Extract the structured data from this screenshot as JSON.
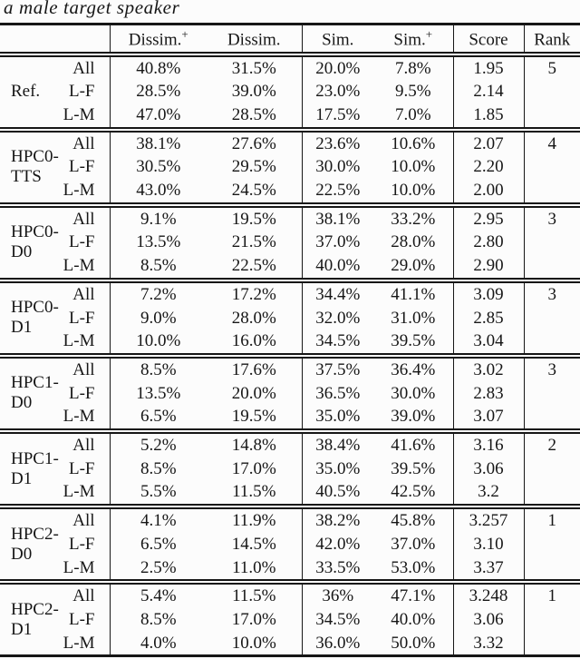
{
  "caption": "a male target speaker",
  "table": {
    "columns": [
      {
        "label": "Dissim.",
        "sup": "+"
      },
      {
        "label": "Dissim.",
        "sup": ""
      },
      {
        "label": "Sim.",
        "sup": ""
      },
      {
        "label": "Sim.",
        "sup": "+"
      },
      {
        "label": "Score",
        "sup": ""
      },
      {
        "label": "Rank",
        "sup": ""
      }
    ],
    "groups": [
      {
        "label_lines": [
          "Ref."
        ],
        "rank": "5",
        "rows": [
          {
            "cond": "All",
            "values": [
              "40.8%",
              "31.5%",
              "20.0%",
              "7.8%",
              "1.95"
            ]
          },
          {
            "cond": "L-F",
            "values": [
              "28.5%",
              "39.0%",
              "23.0%",
              "9.5%",
              "2.14"
            ]
          },
          {
            "cond": "L-M",
            "values": [
              "47.0%",
              "28.5%",
              "17.5%",
              "7.0%",
              "1.85"
            ]
          }
        ]
      },
      {
        "label_lines": [
          "HPC0-",
          "TTS"
        ],
        "rank": "4",
        "rows": [
          {
            "cond": "All",
            "values": [
              "38.1%",
              "27.6%",
              "23.6%",
              "10.6%",
              "2.07"
            ]
          },
          {
            "cond": "L-F",
            "values": [
              "30.5%",
              "29.5%",
              "30.0%",
              "10.0%",
              "2.20"
            ]
          },
          {
            "cond": "L-M",
            "values": [
              "43.0%",
              "24.5%",
              "22.5%",
              "10.0%",
              "2.00"
            ]
          }
        ]
      },
      {
        "label_lines": [
          "HPC0-",
          "D0"
        ],
        "rank": "3",
        "rows": [
          {
            "cond": "All",
            "values": [
              "9.1%",
              "19.5%",
              "38.1%",
              "33.2%",
              "2.95"
            ]
          },
          {
            "cond": "L-F",
            "values": [
              "13.5%",
              "21.5%",
              "37.0%",
              "28.0%",
              "2.80"
            ]
          },
          {
            "cond": "L-M",
            "values": [
              "8.5%",
              "22.5%",
              "40.0%",
              "29.0%",
              "2.90"
            ]
          }
        ]
      },
      {
        "label_lines": [
          "HPC0-",
          "D1"
        ],
        "rank": "3",
        "rows": [
          {
            "cond": "All",
            "values": [
              "7.2%",
              "17.2%",
              "34.4%",
              "41.1%",
              "3.09"
            ]
          },
          {
            "cond": "L-F",
            "values": [
              "9.0%",
              "28.0%",
              "32.0%",
              "31.0%",
              "2.85"
            ]
          },
          {
            "cond": "L-M",
            "values": [
              "10.0%",
              "16.0%",
              "34.5%",
              "39.5%",
              "3.04"
            ]
          }
        ]
      },
      {
        "label_lines": [
          "HPC1-",
          "D0"
        ],
        "rank": "3",
        "rows": [
          {
            "cond": "All",
            "values": [
              "8.5%",
              "17.6%",
              "37.5%",
              "36.4%",
              "3.02"
            ]
          },
          {
            "cond": "L-F",
            "values": [
              "13.5%",
              "20.0%",
              "36.5%",
              "30.0%",
              "2.83"
            ]
          },
          {
            "cond": "L-M",
            "values": [
              "6.5%",
              "19.5%",
              "35.0%",
              "39.0%",
              "3.07"
            ]
          }
        ]
      },
      {
        "label_lines": [
          "HPC1-",
          "D1"
        ],
        "rank": "2",
        "rows": [
          {
            "cond": "All",
            "values": [
              "5.2%",
              "14.8%",
              "38.4%",
              "41.6%",
              "3.16"
            ]
          },
          {
            "cond": "L-F",
            "values": [
              "8.5%",
              "17.0%",
              "35.0%",
              "39.5%",
              "3.06"
            ]
          },
          {
            "cond": "L-M",
            "values": [
              "5.5%",
              "11.5%",
              "40.5%",
              "42.5%",
              "3.2"
            ]
          }
        ]
      },
      {
        "label_lines": [
          "HPC2-",
          "D0"
        ],
        "rank": "1",
        "rows": [
          {
            "cond": "All",
            "values": [
              "4.1%",
              "11.9%",
              "38.2%",
              "45.8%",
              "3.257"
            ]
          },
          {
            "cond": "L-F",
            "values": [
              "6.5%",
              "14.5%",
              "42.0%",
              "37.0%",
              "3.10"
            ]
          },
          {
            "cond": "L-M",
            "values": [
              "2.5%",
              "11.0%",
              "33.5%",
              "53.0%",
              "3.37"
            ]
          }
        ]
      },
      {
        "label_lines": [
          "HPC2-",
          "D1"
        ],
        "rank": "1",
        "rows": [
          {
            "cond": "All",
            "values": [
              "5.4%",
              "11.5%",
              "36%",
              "47.1%",
              "3.248"
            ]
          },
          {
            "cond": "L-F",
            "values": [
              "8.5%",
              "17.0%",
              "34.5%",
              "40.0%",
              "3.06"
            ]
          },
          {
            "cond": "L-M",
            "values": [
              "4.0%",
              "10.0%",
              "36.0%",
              "50.0%",
              "3.32"
            ]
          }
        ]
      }
    ]
  }
}
